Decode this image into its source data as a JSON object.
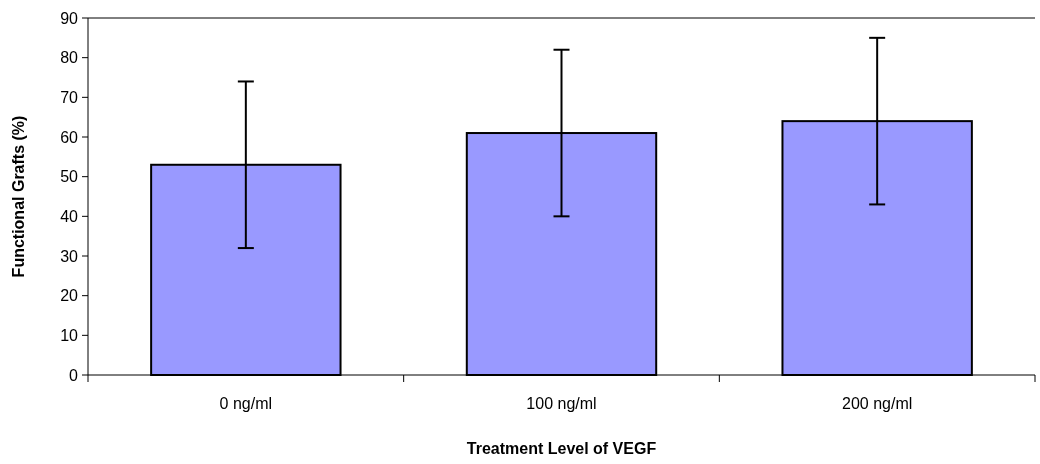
{
  "chart_data": {
    "type": "bar",
    "xlabel": "Treatment Level of VEGF",
    "ylabel": "Functional Grafts (%)",
    "categories": [
      "0 ng/ml",
      "100 ng/ml",
      "200 ng/ml"
    ],
    "values": [
      53,
      61,
      64
    ],
    "errors": [
      21,
      21,
      21
    ],
    "color": "#9999ff",
    "ylim": [
      0,
      90
    ],
    "yticks": [
      0,
      10,
      20,
      30,
      40,
      50,
      60,
      70,
      80,
      90
    ],
    "grid": false
  }
}
